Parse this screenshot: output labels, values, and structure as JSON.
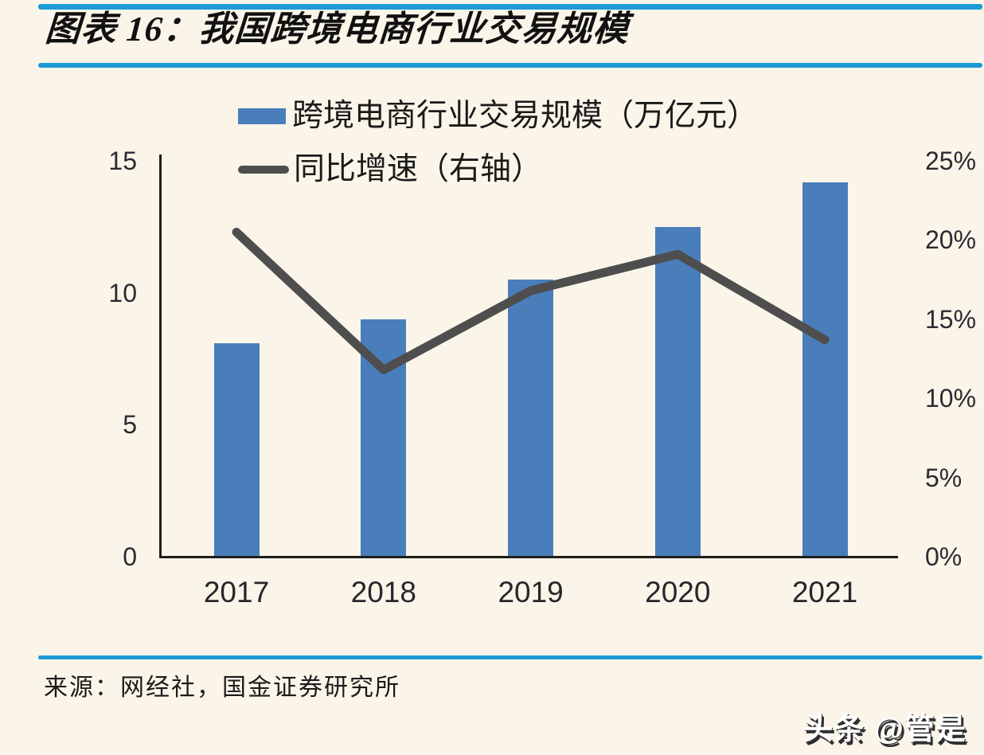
{
  "header": {
    "title": "图表 16：我国跨境电商行业交易规模"
  },
  "legend": {
    "items": [
      {
        "label": "跨境电商行业交易规模（万亿元）",
        "swatch": "bar-swatch",
        "color": "#4A7EBB"
      },
      {
        "label": "同比增速（右轴）",
        "swatch": "line-swatch",
        "color": "#4E4E4E"
      }
    ]
  },
  "chart_data": {
    "type": "bar+line",
    "categories": [
      "2017",
      "2018",
      "2019",
      "2020",
      "2021"
    ],
    "series": [
      {
        "name": "跨境电商行业交易规模（万亿元）",
        "type": "bar",
        "axis": "left",
        "unit": "万亿元",
        "values": [
          8.1,
          9.0,
          10.5,
          12.5,
          14.2
        ],
        "color": "#4A7EBB"
      },
      {
        "name": "同比增速（右轴）",
        "type": "line",
        "axis": "right",
        "unit": "%",
        "values": [
          20.5,
          11.8,
          16.8,
          19.1,
          13.7
        ],
        "color": "#4E4E4E"
      }
    ],
    "left_axis": {
      "range": [
        0,
        15
      ],
      "ticks": [
        {
          "label": "0",
          "value": 0
        },
        {
          "label": "5",
          "value": 5
        },
        {
          "label": "10",
          "value": 10
        },
        {
          "label": "15",
          "value": 15
        }
      ]
    },
    "right_axis": {
      "range": [
        0,
        25
      ],
      "ticks": [
        {
          "label": "0%",
          "value": 0
        },
        {
          "label": "5%",
          "value": 5
        },
        {
          "label": "10%",
          "value": 10
        },
        {
          "label": "15%",
          "value": 15
        },
        {
          "label": "20%",
          "value": 20
        },
        {
          "label": "25%",
          "value": 25
        }
      ]
    },
    "grid": false,
    "legend_position": "top-center"
  },
  "footer": {
    "source": "来源：网经社，国金证券研究所"
  },
  "watermark": {
    "text": "头条 @管是"
  },
  "colors": {
    "background": "#FAF5E8",
    "rule": "#1B9AD6",
    "bar": "#4A7EBB",
    "line": "#4E4E4E",
    "axis": "#1E1E1E",
    "tick_text": "#2A2A32"
  }
}
